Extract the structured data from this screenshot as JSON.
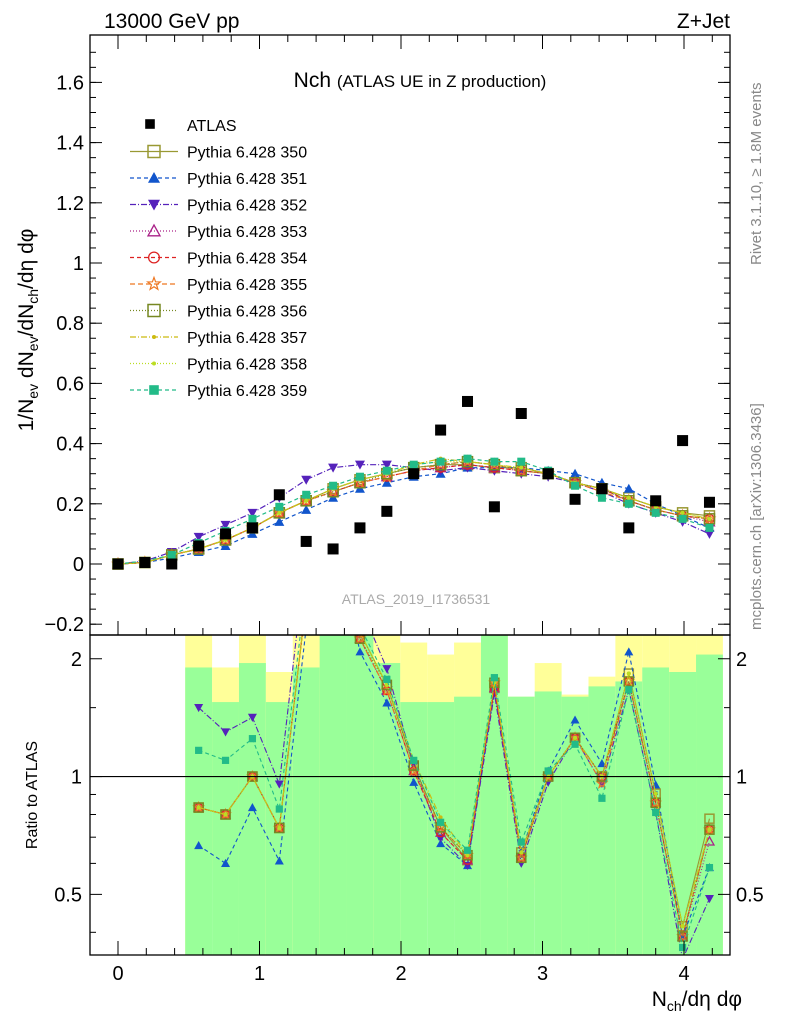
{
  "header": {
    "left": "13000 GeV pp",
    "right": "Z+Jet"
  },
  "chart_data": {
    "type": "scatter",
    "title": "Nch",
    "subtitle": "(ATLAS UE in Z production)",
    "xlabel": "N_ch/dη dφ",
    "ylabel": "1/N_ev dN_ev/dN_ch/dη dφ",
    "ratio_ylabel": "Ratio to ATLAS",
    "xlim": [
      -0.2,
      4.4
    ],
    "ylim": [
      -0.22,
      1.76
    ],
    "ratio_ylim": [
      0.35,
      2.3
    ],
    "x_ticks": [
      "0",
      "1",
      "2",
      "3",
      "4"
    ],
    "y_ticks": [
      "−0.2",
      "0",
      "0.2",
      "0.4",
      "0.6",
      "0.8",
      "1",
      "1.2",
      "1.4",
      "1.6"
    ],
    "ratio_ticks": [
      "0.5",
      "1",
      "2"
    ],
    "watermark": "ATLAS_2019_I1736531",
    "side_label_top": "Rivet 3.1.10, ≥ 1.8M events",
    "side_label_bottom": "mcplots.cern.ch [arXiv:1306.3436]",
    "x": [
      0.0,
      0.19,
      0.38,
      0.57,
      0.76,
      0.95,
      1.14,
      1.33,
      1.52,
      1.71,
      1.9,
      2.09,
      2.28,
      2.47,
      2.66,
      2.85,
      3.04,
      3.23,
      3.42,
      3.61,
      3.8,
      3.99,
      4.18
    ],
    "data": {
      "name": "ATLAS",
      "color": "#000000",
      "y": [
        0.0,
        0.005,
        0.0,
        0.06,
        0.1,
        0.12,
        0.23,
        0.075,
        0.05,
        0.12,
        0.175,
        0.3,
        0.445,
        0.54,
        0.19,
        0.5,
        0.3,
        0.215,
        0.25,
        0.12,
        0.21,
        0.41,
        0.205
      ]
    },
    "series": [
      {
        "name": "Pythia 6.428 350",
        "color": "#999933",
        "marker": "open-square",
        "dash": "",
        "y": [
          0.0,
          0.005,
          0.03,
          0.05,
          0.08,
          0.12,
          0.17,
          0.21,
          0.25,
          0.28,
          0.3,
          0.32,
          0.33,
          0.33,
          0.32,
          0.32,
          0.3,
          0.27,
          0.25,
          0.22,
          0.19,
          0.17,
          0.16
        ]
      },
      {
        "name": "Pythia 6.428 351",
        "color": "#1155cc",
        "marker": "filled-triangle",
        "dash": "4,3",
        "y": [
          0.0,
          0.005,
          0.02,
          0.04,
          0.06,
          0.1,
          0.14,
          0.18,
          0.22,
          0.25,
          0.27,
          0.29,
          0.3,
          0.32,
          0.32,
          0.32,
          0.31,
          0.3,
          0.27,
          0.25,
          0.2,
          0.16,
          0.12
        ]
      },
      {
        "name": "Pythia 6.428 352",
        "color": "#5522bb",
        "marker": "filled-down-triangle",
        "dash": "6,2,1,2",
        "y": [
          0.0,
          0.01,
          0.04,
          0.09,
          0.13,
          0.17,
          0.22,
          0.28,
          0.32,
          0.33,
          0.33,
          0.32,
          0.31,
          0.32,
          0.31,
          0.3,
          0.29,
          0.27,
          0.24,
          0.2,
          0.17,
          0.14,
          0.1
        ]
      },
      {
        "name": "Pythia 6.428 353",
        "color": "#aa2288",
        "marker": "open-triangle",
        "dash": "1,2",
        "y": [
          0.0,
          0.005,
          0.03,
          0.05,
          0.08,
          0.12,
          0.17,
          0.21,
          0.24,
          0.27,
          0.29,
          0.31,
          0.32,
          0.33,
          0.32,
          0.31,
          0.3,
          0.27,
          0.25,
          0.21,
          0.18,
          0.16,
          0.14
        ]
      },
      {
        "name": "Pythia 6.428 354",
        "color": "#dd2222",
        "marker": "open-circle",
        "dash": "4,3",
        "y": [
          0.0,
          0.005,
          0.03,
          0.05,
          0.08,
          0.12,
          0.17,
          0.21,
          0.24,
          0.27,
          0.29,
          0.31,
          0.32,
          0.33,
          0.32,
          0.31,
          0.3,
          0.27,
          0.25,
          0.21,
          0.18,
          0.16,
          0.15
        ]
      },
      {
        "name": "Pythia 6.428 355",
        "color": "#ee7722",
        "marker": "open-star",
        "dash": "5,3",
        "y": [
          0.0,
          0.005,
          0.03,
          0.05,
          0.08,
          0.12,
          0.17,
          0.21,
          0.24,
          0.27,
          0.29,
          0.31,
          0.33,
          0.34,
          0.33,
          0.31,
          0.3,
          0.27,
          0.24,
          0.21,
          0.18,
          0.16,
          0.15
        ]
      },
      {
        "name": "Pythia 6.428 356",
        "color": "#778822",
        "marker": "open-square",
        "dash": "1,2",
        "y": [
          0.0,
          0.005,
          0.03,
          0.05,
          0.08,
          0.12,
          0.17,
          0.21,
          0.24,
          0.27,
          0.3,
          0.32,
          0.33,
          0.34,
          0.33,
          0.31,
          0.3,
          0.27,
          0.25,
          0.21,
          0.18,
          0.16,
          0.15
        ]
      },
      {
        "name": "Pythia 6.428 357",
        "color": "#ccbb11",
        "marker": "small-dot",
        "dash": "6,2,1,2",
        "y": [
          0.0,
          0.005,
          0.03,
          0.05,
          0.08,
          0.12,
          0.17,
          0.21,
          0.25,
          0.28,
          0.3,
          0.33,
          0.35,
          0.34,
          0.33,
          0.32,
          0.3,
          0.27,
          0.25,
          0.22,
          0.19,
          0.17,
          0.15
        ]
      },
      {
        "name": "Pythia 6.428 358",
        "color": "#bbdd22",
        "marker": "small-dot",
        "dash": "1,2",
        "y": [
          0.0,
          0.005,
          0.03,
          0.05,
          0.08,
          0.12,
          0.17,
          0.21,
          0.25,
          0.28,
          0.3,
          0.33,
          0.34,
          0.34,
          0.33,
          0.32,
          0.3,
          0.27,
          0.25,
          0.22,
          0.19,
          0.17,
          0.15
        ]
      },
      {
        "name": "Pythia 6.428 359",
        "color": "#22bb88",
        "marker": "filled-square",
        "dash": "4,3",
        "y": [
          0.0,
          0.01,
          0.03,
          0.07,
          0.11,
          0.15,
          0.19,
          0.23,
          0.26,
          0.29,
          0.31,
          0.33,
          0.34,
          0.35,
          0.34,
          0.34,
          0.31,
          0.26,
          0.22,
          0.2,
          0.17,
          0.15,
          0.12
        ]
      }
    ],
    "ratio_bands": {
      "x_edges": [
        0.475,
        0.665,
        0.855,
        1.045,
        1.235,
        1.425,
        1.615,
        1.805,
        1.995,
        2.185,
        2.375,
        2.565,
        2.755,
        2.945,
        3.135,
        3.325,
        3.515,
        3.705,
        3.895,
        4.085,
        4.275
      ],
      "yellow_lo": [
        0.35,
        0.58,
        0.35,
        0.35,
        0.35,
        0.35,
        0.35,
        0.35,
        0.58,
        0.49,
        0.58,
        0.35,
        0.52,
        0.53,
        0.35,
        0.35,
        0.35,
        0.35,
        0.35,
        0.35
      ],
      "yellow_hi": [
        2.3,
        1.9,
        2.3,
        1.85,
        2.3,
        2.3,
        2.3,
        2.3,
        2.2,
        2.05,
        2.2,
        2.3,
        1.6,
        1.95,
        1.62,
        1.8,
        2.3,
        2.3,
        2.3,
        2.3
      ],
      "green_lo": [
        0.35,
        0.35,
        0.35,
        0.35,
        0.35,
        0.35,
        0.35,
        0.35,
        0.35,
        0.35,
        0.35,
        0.35,
        0.35,
        0.35,
        0.35,
        0.35,
        0.35,
        0.35,
        0.35,
        0.35
      ],
      "green_hi": [
        1.9,
        1.55,
        1.95,
        1.55,
        1.9,
        2.3,
        2.3,
        1.95,
        1.55,
        1.55,
        1.6,
        2.3,
        1.6,
        1.65,
        1.6,
        1.7,
        1.75,
        1.9,
        1.85,
        2.05
      ]
    }
  }
}
